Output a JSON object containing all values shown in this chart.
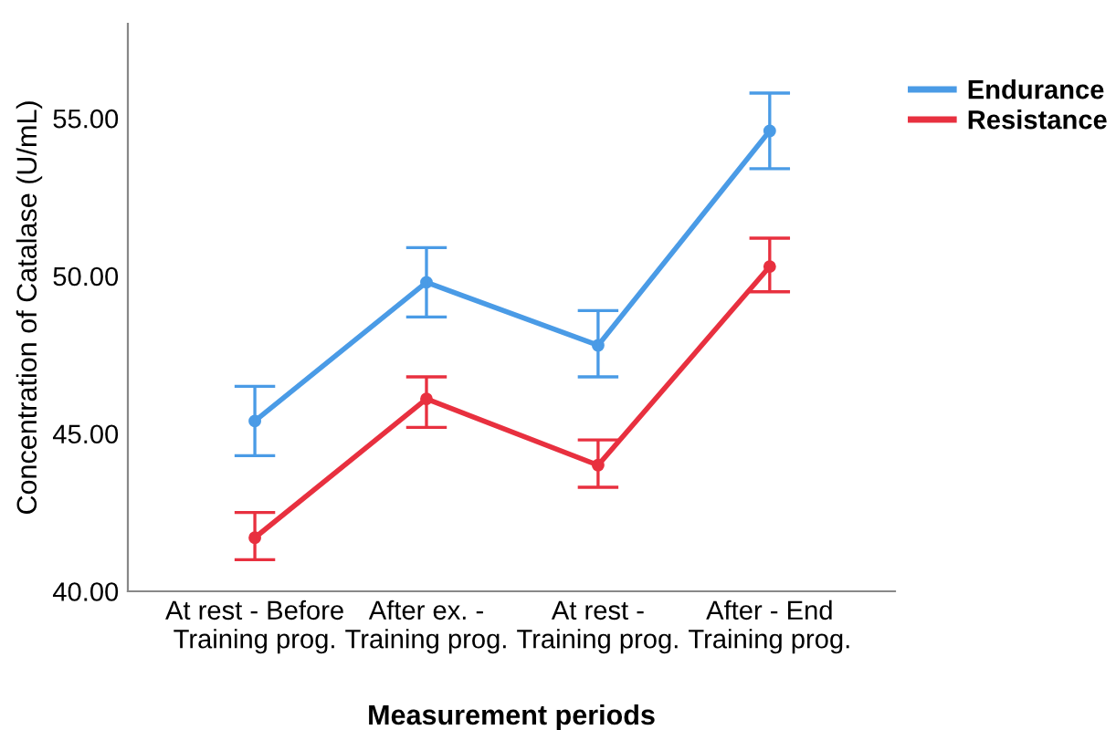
{
  "chart_data": {
    "type": "line",
    "xlabel": "Measurement periods",
    "ylabel": "Concentration of Catalase (U/mL)",
    "categories": [
      "At rest - Before\nTraining prog.",
      "After ex. -\nTraining prog.",
      "At rest -\nTraining prog.",
      "After - End\nTraining prog."
    ],
    "series": [
      {
        "name": "Endurance",
        "color": "#4a9be6",
        "values": [
          45.4,
          49.8,
          47.8,
          54.6
        ],
        "errors": [
          [
            44.3,
            46.5
          ],
          [
            48.7,
            50.9
          ],
          [
            46.8,
            48.9
          ],
          [
            53.4,
            55.8
          ]
        ]
      },
      {
        "name": "Resistance",
        "color": "#e8303f",
        "values": [
          41.7,
          46.1,
          44.0,
          50.3
        ],
        "errors": [
          [
            41.0,
            42.5
          ],
          [
            45.2,
            46.8
          ],
          [
            43.3,
            44.8
          ],
          [
            49.5,
            51.2
          ]
        ]
      }
    ],
    "ylim": [
      40,
      58
    ],
    "yticks": [
      {
        "value": 40,
        "label": "40.00"
      },
      {
        "value": 45,
        "label": "45.00"
      },
      {
        "value": 50,
        "label": "50.00"
      },
      {
        "value": 55,
        "label": "55.00"
      }
    ],
    "legend": "top right",
    "marker": "circle",
    "line_style": "solid",
    "grid": false
  }
}
